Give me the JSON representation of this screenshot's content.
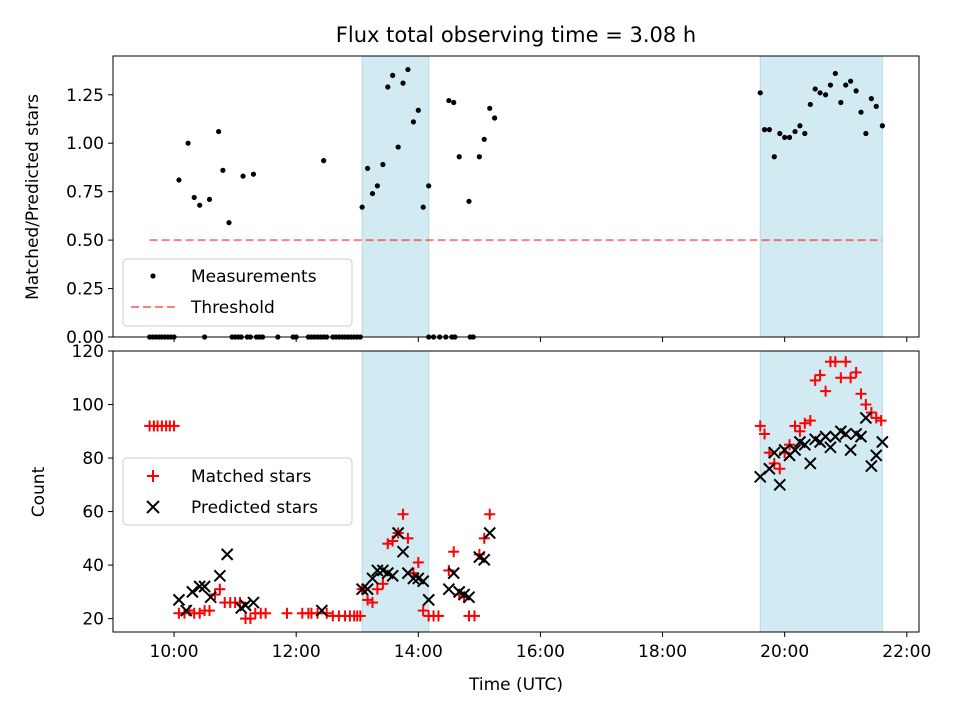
{
  "title": "Flux total observing time = 3.08 h",
  "colors": {
    "shade": "#add8e6",
    "measurement": "#000000",
    "threshold": "#ff0000",
    "matched": "#ff0000",
    "predicted": "#000000"
  },
  "chart_data": [
    {
      "type": "scatter",
      "ylabel": "Matched/Predicted stars",
      "xlim": [
        9.0,
        22.2
      ],
      "ylim": [
        0,
        1.45
      ],
      "yticks": [
        0.0,
        0.25,
        0.5,
        0.75,
        1.0,
        1.25
      ],
      "ytick_labels": [
        "0.00",
        "0.25",
        "0.50",
        "0.75",
        "1.00",
        "1.25"
      ],
      "legend": {
        "placement": "lower-left",
        "entries": [
          {
            "label": "Measurements"
          },
          {
            "label": "Threshold"
          }
        ]
      },
      "shaded_intervals": [
        [
          13.08,
          14.17
        ],
        [
          19.6,
          21.6
        ]
      ],
      "threshold": {
        "y": 0.5,
        "x": [
          9.6,
          21.6
        ]
      },
      "series": [
        {
          "name": "Measurements",
          "points": [
            [
              9.6,
              0
            ],
            [
              9.65,
              0
            ],
            [
              9.7,
              0
            ],
            [
              9.75,
              0
            ],
            [
              9.8,
              0
            ],
            [
              9.85,
              0
            ],
            [
              9.9,
              0
            ],
            [
              9.95,
              0
            ],
            [
              10.0,
              0
            ],
            [
              10.08,
              0.81
            ],
            [
              10.23,
              1.0
            ],
            [
              10.33,
              0.72
            ],
            [
              10.42,
              0.68
            ],
            [
              10.58,
              0.71
            ],
            [
              10.73,
              1.06
            ],
            [
              10.8,
              0.86
            ],
            [
              10.9,
              0.59
            ],
            [
              11.13,
              0.83
            ],
            [
              11.3,
              0.84
            ],
            [
              10.5,
              0
            ],
            [
              10.95,
              0
            ],
            [
              11.0,
              0
            ],
            [
              11.05,
              0
            ],
            [
              11.1,
              0
            ],
            [
              11.2,
              0
            ],
            [
              11.25,
              0
            ],
            [
              11.35,
              0
            ],
            [
              11.4,
              0
            ],
            [
              11.45,
              0
            ],
            [
              11.7,
              0
            ],
            [
              11.95,
              0
            ],
            [
              12.0,
              0
            ],
            [
              12.2,
              0
            ],
            [
              12.25,
              0
            ],
            [
              12.3,
              0
            ],
            [
              12.35,
              0
            ],
            [
              12.4,
              0
            ],
            [
              12.45,
              0
            ],
            [
              12.5,
              0
            ],
            [
              12.45,
              0.91
            ],
            [
              12.6,
              0
            ],
            [
              12.65,
              0
            ],
            [
              12.7,
              0
            ],
            [
              12.75,
              0
            ],
            [
              12.8,
              0
            ],
            [
              12.85,
              0
            ],
            [
              12.9,
              0
            ],
            [
              12.95,
              0
            ],
            [
              13.0,
              0
            ],
            [
              13.05,
              0
            ],
            [
              13.08,
              0.67
            ],
            [
              13.17,
              0.87
            ],
            [
              13.25,
              0.74
            ],
            [
              13.33,
              0.78
            ],
            [
              13.42,
              0.89
            ],
            [
              13.5,
              1.29
            ],
            [
              13.58,
              1.35
            ],
            [
              13.67,
              0.98
            ],
            [
              13.75,
              1.31
            ],
            [
              13.83,
              1.38
            ],
            [
              13.92,
              1.11
            ],
            [
              14.0,
              1.17
            ],
            [
              14.08,
              0.67
            ],
            [
              14.17,
              0.78
            ],
            [
              14.17,
              0
            ],
            [
              14.25,
              0
            ],
            [
              14.35,
              0
            ],
            [
              14.45,
              0
            ],
            [
              14.55,
              0
            ],
            [
              14.6,
              0
            ],
            [
              14.85,
              0
            ],
            [
              14.9,
              0
            ],
            [
              14.5,
              1.22
            ],
            [
              14.58,
              1.21
            ],
            [
              14.67,
              0.93
            ],
            [
              14.83,
              0.7
            ],
            [
              15.0,
              0.93
            ],
            [
              15.08,
              1.02
            ],
            [
              15.17,
              1.18
            ],
            [
              15.25,
              1.13
            ],
            [
              19.6,
              1.26
            ],
            [
              19.67,
              1.07
            ],
            [
              19.75,
              1.07
            ],
            [
              19.83,
              0.93
            ],
            [
              19.92,
              1.05
            ],
            [
              20.0,
              1.03
            ],
            [
              20.08,
              1.03
            ],
            [
              20.17,
              1.06
            ],
            [
              20.25,
              1.09
            ],
            [
              20.33,
              1.05
            ],
            [
              20.42,
              1.2
            ],
            [
              20.5,
              1.28
            ],
            [
              20.58,
              1.26
            ],
            [
              20.67,
              1.25
            ],
            [
              20.75,
              1.3
            ],
            [
              20.83,
              1.36
            ],
            [
              20.92,
              1.21
            ],
            [
              21.0,
              1.3
            ],
            [
              21.08,
              1.32
            ],
            [
              21.17,
              1.27
            ],
            [
              21.25,
              1.16
            ],
            [
              21.33,
              1.05
            ],
            [
              21.42,
              1.23
            ],
            [
              21.5,
              1.19
            ],
            [
              21.6,
              1.09
            ]
          ]
        }
      ]
    },
    {
      "type": "scatter",
      "xlabel": "Time (UTC)",
      "ylabel": "Count",
      "xlim": [
        9.0,
        22.2
      ],
      "ylim": [
        15,
        120
      ],
      "xticks": [
        10,
        12,
        14,
        16,
        18,
        20,
        22
      ],
      "xtick_labels": [
        "10:00",
        "12:00",
        "14:00",
        "16:00",
        "18:00",
        "20:00",
        "22:00"
      ],
      "yticks": [
        20,
        40,
        60,
        80,
        100,
        120
      ],
      "ytick_labels": [
        "20",
        "40",
        "60",
        "80",
        "100",
        "120"
      ],
      "legend": {
        "placement": "center-left",
        "entries": [
          {
            "label": "Matched stars"
          },
          {
            "label": "Predicted stars"
          }
        ]
      },
      "shaded_intervals": [
        [
          13.08,
          14.17
        ],
        [
          19.6,
          21.6
        ]
      ],
      "series": [
        {
          "name": "Matched stars",
          "points": [
            [
              9.6,
              92
            ],
            [
              9.67,
              92
            ],
            [
              9.73,
              92
            ],
            [
              9.8,
              92
            ],
            [
              9.87,
              92
            ],
            [
              9.93,
              92
            ],
            [
              10.0,
              92
            ],
            [
              10.08,
              22
            ],
            [
              10.17,
              22
            ],
            [
              10.25,
              23
            ],
            [
              10.33,
              22
            ],
            [
              10.42,
              22
            ],
            [
              10.5,
              23
            ],
            [
              10.58,
              23
            ],
            [
              10.67,
              29
            ],
            [
              10.75,
              31
            ],
            [
              10.83,
              26
            ],
            [
              10.92,
              26
            ],
            [
              11.0,
              26
            ],
            [
              11.08,
              26
            ],
            [
              11.17,
              20
            ],
            [
              11.25,
              20
            ],
            [
              11.33,
              22
            ],
            [
              11.42,
              22
            ],
            [
              11.5,
              22
            ],
            [
              11.85,
              22
            ],
            [
              12.1,
              22
            ],
            [
              12.2,
              22
            ],
            [
              12.25,
              22
            ],
            [
              12.35,
              22
            ],
            [
              12.5,
              22
            ],
            [
              12.6,
              21
            ],
            [
              12.7,
              21
            ],
            [
              12.8,
              21
            ],
            [
              12.88,
              21
            ],
            [
              12.95,
              21
            ],
            [
              13.0,
              21
            ],
            [
              13.05,
              21
            ],
            [
              13.08,
              31
            ],
            [
              13.17,
              27
            ],
            [
              13.25,
              26
            ],
            [
              13.33,
              31
            ],
            [
              13.42,
              33
            ],
            [
              13.5,
              48
            ],
            [
              13.58,
              49
            ],
            [
              13.67,
              52
            ],
            [
              13.75,
              59
            ],
            [
              13.83,
              50
            ],
            [
              13.92,
              37
            ],
            [
              14.0,
              41
            ],
            [
              14.08,
              23
            ],
            [
              14.17,
              21
            ],
            [
              14.25,
              21
            ],
            [
              14.33,
              21
            ],
            [
              14.5,
              38
            ],
            [
              14.58,
              45
            ],
            [
              14.67,
              29
            ],
            [
              14.75,
              28
            ],
            [
              14.83,
              21
            ],
            [
              14.92,
              21
            ],
            [
              15.0,
              44
            ],
            [
              15.08,
              50
            ],
            [
              15.17,
              59
            ],
            [
              19.6,
              92
            ],
            [
              19.67,
              89
            ],
            [
              19.75,
              82
            ],
            [
              19.83,
              78
            ],
            [
              19.92,
              76
            ],
            [
              20.0,
              82
            ],
            [
              20.08,
              85
            ],
            [
              20.17,
              92
            ],
            [
              20.25,
              90
            ],
            [
              20.33,
              93
            ],
            [
              20.42,
              94
            ],
            [
              20.5,
              109
            ],
            [
              20.58,
              111
            ],
            [
              20.67,
              105
            ],
            [
              20.75,
              116
            ],
            [
              20.83,
              116
            ],
            [
              20.92,
              110
            ],
            [
              21.0,
              116
            ],
            [
              21.08,
              110
            ],
            [
              21.17,
              112
            ],
            [
              21.25,
              104
            ],
            [
              21.33,
              100
            ],
            [
              21.42,
              97
            ],
            [
              21.5,
              95
            ],
            [
              21.58,
              94
            ]
          ]
        },
        {
          "name": "Predicted stars",
          "points": [
            [
              10.08,
              27
            ],
            [
              10.2,
              23
            ],
            [
              10.3,
              30
            ],
            [
              10.42,
              32
            ],
            [
              10.5,
              32
            ],
            [
              10.6,
              28
            ],
            [
              10.75,
              36
            ],
            [
              10.87,
              44
            ],
            [
              11.1,
              24
            ],
            [
              11.17,
              25
            ],
            [
              11.3,
              26
            ],
            [
              12.42,
              23
            ],
            [
              13.08,
              31
            ],
            [
              13.17,
              31
            ],
            [
              13.25,
              35
            ],
            [
              13.33,
              38
            ],
            [
              13.42,
              38
            ],
            [
              13.5,
              37
            ],
            [
              13.58,
              36
            ],
            [
              13.67,
              52
            ],
            [
              13.75,
              45
            ],
            [
              13.83,
              37
            ],
            [
              13.92,
              35
            ],
            [
              14.0,
              35
            ],
            [
              14.08,
              34
            ],
            [
              14.17,
              27
            ],
            [
              14.5,
              31
            ],
            [
              14.58,
              37
            ],
            [
              14.67,
              30
            ],
            [
              14.75,
              29
            ],
            [
              14.83,
              28
            ],
            [
              15.0,
              43
            ],
            [
              15.08,
              42
            ],
            [
              15.17,
              52
            ],
            [
              19.6,
              73
            ],
            [
              19.75,
              76
            ],
            [
              19.83,
              82
            ],
            [
              19.92,
              70
            ],
            [
              20.0,
              83
            ],
            [
              20.08,
              81
            ],
            [
              20.17,
              83
            ],
            [
              20.25,
              86
            ],
            [
              20.33,
              85
            ],
            [
              20.42,
              78
            ],
            [
              20.5,
              87
            ],
            [
              20.58,
              86
            ],
            [
              20.67,
              88
            ],
            [
              20.75,
              84
            ],
            [
              20.83,
              88
            ],
            [
              20.92,
              90
            ],
            [
              21.0,
              89
            ],
            [
              21.08,
              83
            ],
            [
              21.17,
              89
            ],
            [
              21.25,
              88
            ],
            [
              21.33,
              95
            ],
            [
              21.42,
              77
            ],
            [
              21.5,
              81
            ],
            [
              21.6,
              86
            ]
          ]
        }
      ]
    }
  ]
}
